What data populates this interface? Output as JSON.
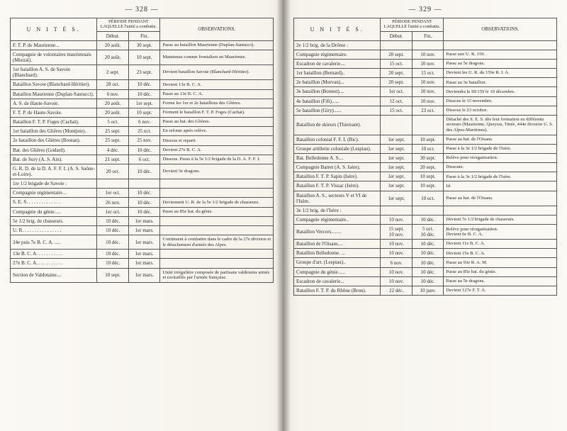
{
  "left": {
    "pageNo": "— 328 —",
    "headers": {
      "units": "U N I T É S.",
      "periode": "PÉRIODE\nPENDANT LAQUELLE\nl'unité a combattu.",
      "debut": "Début.",
      "fin": "Fin.",
      "obs": "OBSERVATIONS."
    },
    "rows": [
      {
        "u": "F. T. P. de Maurienne...",
        "d": "20 août.",
        "f": "30 sept.",
        "o": "Passe au bataillon Maurienne (Duplan-Santucci)."
      },
      {
        "u": "Compagnie de volontaires mauriennais (Mistral).",
        "d": "20 août.",
        "f": "10 sept.",
        "o": "Maintenue comme frontaliers en Maurienne."
      },
      {
        "u": "1er bataillon A. S. de Savoie (Blanchard).",
        "d": "2 sept.",
        "f": "23 sept.",
        "o": "Devient bataillon Savoie (Blanchard-Héritier)."
      },
      {
        "u": "Bataillon Savoie (Blanchard-Héritier).",
        "d": "28 oct.",
        "f": "10 déc.",
        "o": "Devient 13e B. C. A."
      },
      {
        "u": "Bataillon Maurienne (Duplan-Santucci).",
        "d": "6 nov.",
        "f": "10 déc.",
        "o": "Passe au 13e B. C. A."
      },
      {
        "u": "A. S. de Haute-Savoie.",
        "d": "20 août.",
        "f": "1er sept.",
        "o": "Forme les 1er et 2e bataillons des Glières."
      },
      {
        "u": "F. T. P. de Haute-Savoie.",
        "d": "20 août.",
        "f": "10 sept.",
        "o": "Forment le bataillon F. T. P. Foges (Cachat)."
      },
      {
        "u": "Bataillon F. T. P. Foges (Cachat).",
        "d": "5 oct.",
        "f": "6 nov.",
        "o": "Passe au bat. des Glières."
      },
      {
        "u": "1er bataillon des Glières (Montjoie).",
        "d": "25 sept.",
        "f": "25 oct.",
        "o": "En refonte après relève."
      },
      {
        "u": "2e bataillon des Glières (Boutan).",
        "d": "25 sept.",
        "f": "25 nov.",
        "o": "Dissous et reparti."
      },
      {
        "u": "Bat. des Glières (Godard).",
        "d": "4 déc.",
        "f": "10 déc.",
        "o": "Devient 27e B. C. A."
      },
      {
        "u": "Bat. de Sury (A. S. Ain).",
        "d": "21 sept.",
        "f": "6 oct.",
        "o": "Dissous. Passe à la 5e 1/2 brigade de la D. A. F. F. I."
      },
      {
        "u": "G. R. D. de la D. A. F. F. I. (A. S. Saône-et-Loire).",
        "d": "20 oct.",
        "f": "10 déc.",
        "o": "Devient 5e dragons."
      },
      {
        "u": "1re 1/2 brigade de Savoie :",
        "d": "",
        "f": "",
        "o": ""
      },
      {
        "u": "Compagnie régimentaire...",
        "d": "1er oct.",
        "f": "10 déc.",
        "o": ""
      },
      {
        "u": "S. E. S. . . . . . . . . . . . . .",
        "d": "26 nov.",
        "f": "10 déc.",
        "o": "Deviennent U. R. de la 5e 1/2 brigade de chasseurs."
      },
      {
        "u": "Compagnie du génie.....",
        "d": "1er oct.",
        "f": "10 déc.",
        "o": "Passe au 85e bat. du génie."
      },
      {
        "u": "5e 1/2 brig. de chasseurs.",
        "d": "10 déc.",
        "f": "1er mars.",
        "o": ""
      },
      {
        "u": "U. R. . . . . . . . . . . . . . . .",
        "d": "10 déc.",
        "f": "1er mars.",
        "o": ""
      },
      {
        "u": "24e puis 7e B. C. A. .....",
        "d": "10 déc.",
        "f": "1er mars.",
        "o": "Continuent à combattre dans le cadre de la 27e division et le détachement d'armée des Alpes."
      },
      {
        "u": "13e B. C. A. . . . . . . . . . .",
        "d": "10 déc.",
        "f": "1er mars.",
        "o": ""
      },
      {
        "u": "27e B. C. A. . . . . . . . . . .",
        "d": "10 déc.",
        "f": "1er mars.",
        "o": ""
      },
      {
        "u": "Section de Valdotaine....",
        "d": "10 sept.",
        "f": "1er mars.",
        "o": "Unité irrégulière composée de partisans valdotains armés et ravitaillés par l'armée française."
      }
    ]
  },
  "right": {
    "pageNo": "— 329 —",
    "headers": {
      "units": "U N I T É S.",
      "periode": "PÉRIODE\nPENDANT LAQUELLE\nl'unité a combattu.",
      "debut": "Début.",
      "fin": "Fin.",
      "obs": "OBSERVATIONS."
    },
    "rows": [
      {
        "u": "2e 1/2 brig. de la Drôme :",
        "d": "",
        "f": "",
        "o": ""
      },
      {
        "u": "Compagnie régimentaire.",
        "d": "20 sept.",
        "f": "10 nov.",
        "o": "Passe aux U. R. 159."
      },
      {
        "u": "Escadron de cavalerie....",
        "d": "15 oct.",
        "f": "10 nov.",
        "o": "Passe au 5e dragons."
      },
      {
        "u": "1er bataillon (Bernard)..",
        "d": "20 sept.",
        "f": "15 oct.",
        "o": "Devient les U. R. du 159e R. I. A."
      },
      {
        "u": "2e bataillon (Morvan)...",
        "d": "20 sept.",
        "f": "10 nov.",
        "o": "Passe au 3e bataillon."
      },
      {
        "u": "3e bataillon (Bonnot)....",
        "d": "1er oct.",
        "f": "10 nov.",
        "o": "Deviendra le III/159 le 10 décembre."
      },
      {
        "u": "4e bataillon (Fifi)......",
        "d": "12 oct.",
        "f": "10 nov.",
        "o": "Dissous le 15 novembre."
      },
      {
        "u": "5e bataillon (Giry)......",
        "d": "15 oct.",
        "f": "23 oct.",
        "o": "Dissous le 23 octobre."
      },
      {
        "u": "Bataillon de skieurs (Thiersant).",
        "d": "",
        "f": "",
        "o": "Détaché des S. E. S. dès leur formation en différents secteurs (Maurienne, Queyras, Tinée, 444e division U. S. des Alpes-Maritimes)."
      },
      {
        "u": "Bataillon colonial F. F. I. (Bic).",
        "d": "1er sept.",
        "f": "10 sept.",
        "o": "Passe au bat. de l'Oisans."
      },
      {
        "u": "Groupe artillerie coloniale (Lespiau).",
        "d": "1er sept.",
        "f": "10 oct.",
        "o": "Passe à la 3e 1/2 brigade de l'Isère."
      },
      {
        "u": "Bat. Belledonne A. S....",
        "d": "1er sept.",
        "f": "30 sept.",
        "o": "Relève pour réorganisation."
      },
      {
        "u": "Compagnie Barret (A. S. Isère).",
        "d": "1er sept.",
        "f": "20 sept.",
        "o": "Dissoute."
      },
      {
        "u": "Bataillon F. T. P. Sapin (Isère).",
        "d": "1er sept.",
        "f": "10 sept.",
        "o": "Passe à la 3e 1/2 brigade de l'Isère."
      },
      {
        "u": "Bataillon F. T. P. Vissac (Isère).",
        "d": "1er sept.",
        "f": "10 sept.",
        "o": "Id."
      },
      {
        "u": "Bataillon A. S., secteurs V et VI de l'Isère.",
        "d": "1er sept.",
        "f": "10 oct.",
        "o": "Passe au bat. de l'Oisans."
      },
      {
        "u": "3e 1/2 brig. de l'Isère :",
        "d": "",
        "f": "",
        "o": ""
      },
      {
        "u": "Compagnie régimentaire..",
        "d": "10 nov.",
        "f": "10 déc.",
        "o": "Devient 7e 1/2 brigade de chasseurs."
      },
      {
        "u": "Bataillon Vercors........",
        "d": "15 sept.\n10 nov.",
        "f": "5 oct.\n10 déc.",
        "o": "Relève pour réorganisation.\nDevient 6e B. C. A."
      },
      {
        "u": "Bataillon de l'Oisans....",
        "d": "10 nov.",
        "f": "10 déc.",
        "o": "Devient 11e B. C. A."
      },
      {
        "u": "Bataillon Belledonne. ...",
        "d": "10 nov.",
        "f": "10 déc.",
        "o": "Devient 15e B. C. A."
      },
      {
        "u": "Groupe d'art. (Lespiau)..",
        "d": "6 nov.",
        "f": "10 déc.",
        "o": "Passe au 93e R. A. M."
      },
      {
        "u": "Compagnie du génie......",
        "d": "10 nov.",
        "f": "10 déc.",
        "o": "Passe au 85e bat. du génie."
      },
      {
        "u": "Escadron de cavalerie...",
        "d": "10 nov.",
        "f": "10 déc.",
        "o": "Passe au 5e dragons."
      },
      {
        "u": "Bataillon F. T. P. du Rhône (Brun).",
        "d": "22 déc.",
        "f": "10 janv.",
        "o": "Devient 127e F. T. A."
      }
    ]
  }
}
